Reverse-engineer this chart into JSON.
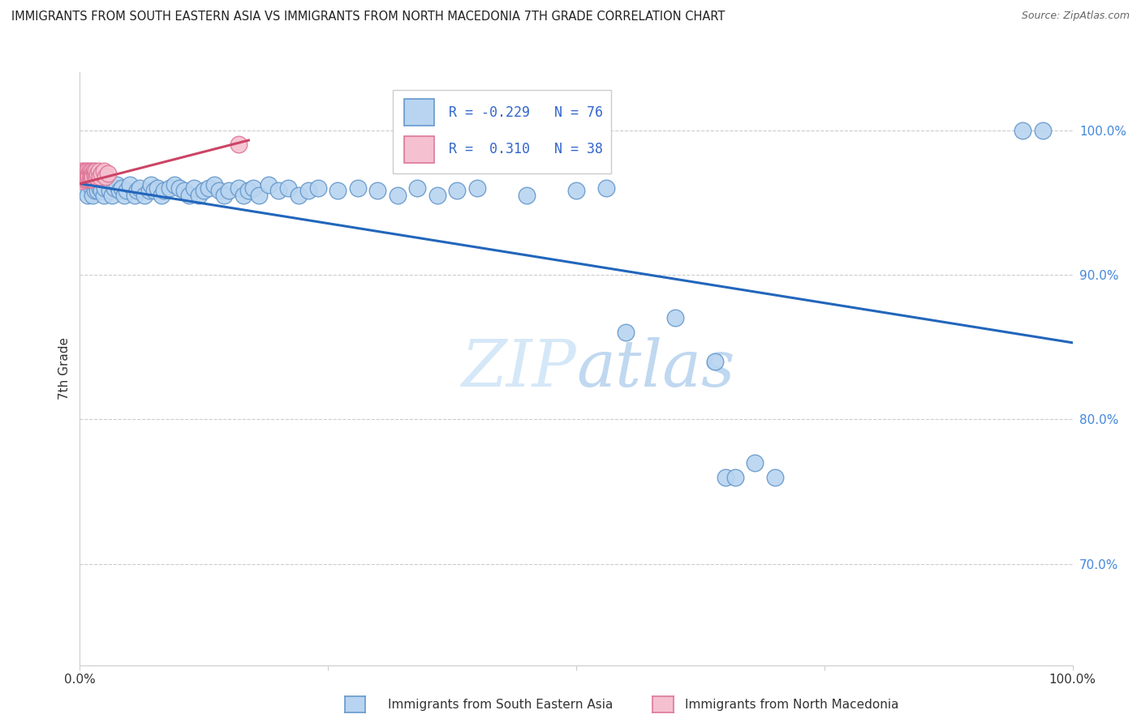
{
  "title": "IMMIGRANTS FROM SOUTH EASTERN ASIA VS IMMIGRANTS FROM NORTH MACEDONIA 7TH GRADE CORRELATION CHART",
  "source": "Source: ZipAtlas.com",
  "ylabel": "7th Grade",
  "legend_blue_label": "Immigrants from South Eastern Asia",
  "legend_pink_label": "Immigrants from North Macedonia",
  "R_blue": -0.229,
  "N_blue": 76,
  "R_pink": 0.31,
  "N_pink": 38,
  "blue_color": "#b8d4f0",
  "blue_edge": "#6699cc",
  "blue_line": "#2266bb",
  "pink_color": "#f5c0d0",
  "pink_edge": "#dd7799",
  "pink_line": "#cc4466",
  "ytick_labels": [
    "100.0%",
    "90.0%",
    "80.0%",
    "70.0%"
  ],
  "ytick_values": [
    1.0,
    0.9,
    0.8,
    0.7
  ],
  "xlim": [
    0.0,
    1.0
  ],
  "ylim": [
    0.63,
    1.04
  ],
  "blue_scatter_x": [
    0.005,
    0.008,
    0.01,
    0.012,
    0.013,
    0.015,
    0.016,
    0.018,
    0.02,
    0.022,
    0.024,
    0.025,
    0.027,
    0.03,
    0.032,
    0.035,
    0.037,
    0.04,
    0.042,
    0.045,
    0.047,
    0.05,
    0.055,
    0.058,
    0.06,
    0.065,
    0.07,
    0.072,
    0.075,
    0.078,
    0.082,
    0.085,
    0.09,
    0.095,
    0.1,
    0.105,
    0.11,
    0.115,
    0.12,
    0.125,
    0.13,
    0.135,
    0.14,
    0.145,
    0.15,
    0.16,
    0.165,
    0.17,
    0.175,
    0.18,
    0.19,
    0.2,
    0.21,
    0.22,
    0.23,
    0.24,
    0.26,
    0.28,
    0.3,
    0.32,
    0.34,
    0.36,
    0.38,
    0.4,
    0.45,
    0.5,
    0.53,
    0.55,
    0.6,
    0.64,
    0.65,
    0.66,
    0.68,
    0.7,
    0.95,
    0.97
  ],
  "blue_scatter_y": [
    0.96,
    0.955,
    0.965,
    0.96,
    0.955,
    0.958,
    0.962,
    0.958,
    0.96,
    0.958,
    0.955,
    0.96,
    0.965,
    0.958,
    0.955,
    0.96,
    0.962,
    0.958,
    0.96,
    0.955,
    0.958,
    0.962,
    0.955,
    0.958,
    0.96,
    0.955,
    0.958,
    0.962,
    0.958,
    0.96,
    0.955,
    0.958,
    0.96,
    0.962,
    0.96,
    0.958,
    0.955,
    0.96,
    0.955,
    0.958,
    0.96,
    0.962,
    0.958,
    0.955,
    0.958,
    0.96,
    0.955,
    0.958,
    0.96,
    0.955,
    0.962,
    0.958,
    0.96,
    0.955,
    0.958,
    0.96,
    0.958,
    0.96,
    0.958,
    0.955,
    0.96,
    0.955,
    0.958,
    0.96,
    0.955,
    0.958,
    0.96,
    0.86,
    0.87,
    0.84,
    0.76,
    0.76,
    0.77,
    0.76,
    1.0,
    1.0
  ],
  "pink_scatter_x": [
    0.001,
    0.002,
    0.002,
    0.003,
    0.003,
    0.004,
    0.004,
    0.005,
    0.005,
    0.006,
    0.006,
    0.007,
    0.007,
    0.008,
    0.008,
    0.009,
    0.009,
    0.01,
    0.01,
    0.011,
    0.011,
    0.012,
    0.012,
    0.013,
    0.013,
    0.014,
    0.015,
    0.015,
    0.016,
    0.017,
    0.018,
    0.019,
    0.02,
    0.022,
    0.024,
    0.026,
    0.028,
    0.16
  ],
  "pink_scatter_y": [
    0.968,
    0.972,
    0.965,
    0.97,
    0.968,
    0.972,
    0.966,
    0.97,
    0.968,
    0.972,
    0.966,
    0.97,
    0.968,
    0.972,
    0.966,
    0.97,
    0.968,
    0.972,
    0.966,
    0.97,
    0.968,
    0.972,
    0.966,
    0.97,
    0.968,
    0.972,
    0.968,
    0.97,
    0.972,
    0.968,
    0.97,
    0.972,
    0.968,
    0.97,
    0.972,
    0.968,
    0.97,
    0.99
  ],
  "blue_trendline_x": [
    0.0,
    1.0
  ],
  "blue_trendline_y": [
    0.963,
    0.853
  ],
  "pink_trendline_x": [
    0.0,
    0.17
  ],
  "pink_trendline_y": [
    0.963,
    0.993
  ]
}
